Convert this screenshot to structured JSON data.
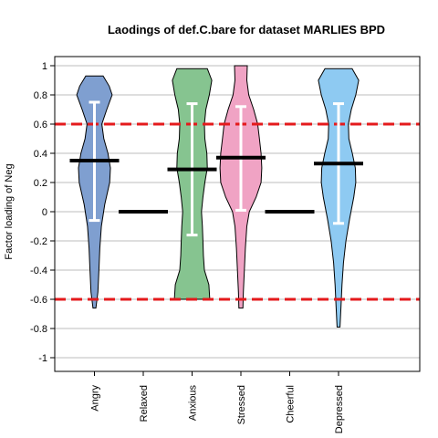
{
  "chart_data": {
    "type": "violin",
    "title": "Laodings of def.C.bare for dataset MARLIES BPD",
    "xlabel": "",
    "ylabel": "Factor loading of Neg",
    "ylim": [
      -1.08,
      1.05
    ],
    "yticks": [
      "1",
      "0.8",
      "0.6",
      "0.4",
      "0.2",
      "0",
      "-0.2",
      "-0.4",
      "-0.6",
      "-0.8",
      "-1"
    ],
    "ytick_values": [
      1,
      0.8,
      0.6,
      0.4,
      0.2,
      0,
      -0.2,
      -0.4,
      -0.6,
      -0.8,
      -1
    ],
    "categories": [
      "Angry",
      "Relaxed",
      "Anxious",
      "Stressed",
      "Cheerful",
      "Depressed"
    ],
    "grid": true,
    "reference_lines": [
      0.6,
      -0.6
    ],
    "reference_line_color": "#e41a1c",
    "series": [
      {
        "category": "Angry",
        "color": "#7f9fd0",
        "range": [
          -0.66,
          0.93
        ],
        "mean": 0.35,
        "sd_bar": [
          -0.06,
          0.75
        ],
        "density": [
          [
            -0.66,
            0.06
          ],
          [
            -0.55,
            0.14
          ],
          [
            -0.4,
            0.18
          ],
          [
            -0.25,
            0.22
          ],
          [
            -0.1,
            0.28
          ],
          [
            0.05,
            0.42
          ],
          [
            0.2,
            0.62
          ],
          [
            0.3,
            0.65
          ],
          [
            0.4,
            0.55
          ],
          [
            0.5,
            0.38
          ],
          [
            0.6,
            0.3
          ],
          [
            0.7,
            0.5
          ],
          [
            0.8,
            0.72
          ],
          [
            0.86,
            0.6
          ],
          [
            0.93,
            0.35
          ]
        ]
      },
      {
        "category": "Relaxed",
        "color": "#000000",
        "range": [
          0,
          0
        ],
        "mean": 0,
        "sd_bar": null,
        "density": []
      },
      {
        "category": "Anxious",
        "color": "#86c490",
        "range": [
          -0.6,
          0.98
        ],
        "mean": 0.29,
        "sd_bar": [
          -0.16,
          0.74
        ],
        "density": [
          [
            -0.6,
            0.72
          ],
          [
            -0.5,
            0.68
          ],
          [
            -0.4,
            0.5
          ],
          [
            -0.3,
            0.46
          ],
          [
            -0.2,
            0.44
          ],
          [
            -0.1,
            0.42
          ],
          [
            0.0,
            0.38
          ],
          [
            0.1,
            0.44
          ],
          [
            0.2,
            0.52
          ],
          [
            0.3,
            0.62
          ],
          [
            0.4,
            0.6
          ],
          [
            0.5,
            0.52
          ],
          [
            0.6,
            0.5
          ],
          [
            0.7,
            0.56
          ],
          [
            0.8,
            0.7
          ],
          [
            0.9,
            0.8
          ],
          [
            0.98,
            0.62
          ]
        ]
      },
      {
        "category": "Stressed",
        "color": "#f0a3c4",
        "range": [
          -0.66,
          1.0
        ],
        "mean": 0.37,
        "sd_bar": [
          0.01,
          0.72
        ],
        "density": [
          [
            -0.66,
            0.08
          ],
          [
            -0.55,
            0.1
          ],
          [
            -0.4,
            0.14
          ],
          [
            -0.25,
            0.18
          ],
          [
            -0.1,
            0.24
          ],
          [
            0.0,
            0.34
          ],
          [
            0.1,
            0.62
          ],
          [
            0.2,
            0.82
          ],
          [
            0.3,
            0.85
          ],
          [
            0.4,
            0.82
          ],
          [
            0.5,
            0.75
          ],
          [
            0.6,
            0.68
          ],
          [
            0.7,
            0.52
          ],
          [
            0.8,
            0.32
          ],
          [
            0.9,
            0.24
          ],
          [
            1.0,
            0.26
          ]
        ]
      },
      {
        "category": "Cheerful",
        "color": "#000000",
        "range": [
          0,
          0
        ],
        "mean": 0,
        "sd_bar": null,
        "density": []
      },
      {
        "category": "Depressed",
        "color": "#8ecaf2",
        "range": [
          -0.79,
          0.98
        ],
        "mean": 0.33,
        "sd_bar": [
          -0.08,
          0.74
        ],
        "density": [
          [
            -0.79,
            0.06
          ],
          [
            -0.65,
            0.1
          ],
          [
            -0.5,
            0.14
          ],
          [
            -0.35,
            0.2
          ],
          [
            -0.2,
            0.3
          ],
          [
            -0.05,
            0.45
          ],
          [
            0.1,
            0.62
          ],
          [
            0.2,
            0.7
          ],
          [
            0.3,
            0.68
          ],
          [
            0.4,
            0.56
          ],
          [
            0.5,
            0.42
          ],
          [
            0.6,
            0.4
          ],
          [
            0.7,
            0.52
          ],
          [
            0.8,
            0.7
          ],
          [
            0.9,
            0.82
          ],
          [
            0.98,
            0.55
          ]
        ]
      }
    ]
  }
}
